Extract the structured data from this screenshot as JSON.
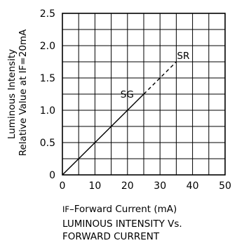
{
  "chart_data": {
    "type": "line",
    "xlabel_prefix": "IF",
    "xlabel_rest": "–Forward Current (mA)",
    "ylabel_lines": [
      "Luminous Intensity",
      "Relative Value at IF=20mA"
    ],
    "caption_lines": [
      "LUMINOUS INTENSITY Vs.",
      "FORWARD CURRENT"
    ],
    "xlim": [
      0,
      50
    ],
    "ylim": [
      0,
      2.5
    ],
    "x_ticks": [
      "0",
      "10",
      "20",
      "30",
      "40",
      "50"
    ],
    "y_ticks": [
      "0",
      "0.5",
      "1.0",
      "1.5",
      "2.0",
      "2.5"
    ],
    "grid": true,
    "series": [
      {
        "name": "SG",
        "style": "solid",
        "x": [
          0,
          20,
          35
        ],
        "y": [
          0,
          1.0,
          1.75
        ]
      },
      {
        "name": "SR",
        "style": "dashed",
        "x": [
          0,
          20,
          35
        ],
        "y": [
          0,
          1.0,
          1.75
        ]
      }
    ],
    "series_render": [
      {
        "name": "SG",
        "segments": [
          {
            "from": [
              0,
              0
            ],
            "to": [
              25,
              1.25
            ],
            "dash": false
          }
        ],
        "label_at": [
          20,
          1.25
        ]
      },
      {
        "name": "SR",
        "segments": [
          {
            "from": [
              25,
              1.25
            ],
            "to": [
              35,
              1.75
            ],
            "dash": true
          }
        ],
        "label_at": [
          35,
          1.75
        ]
      }
    ],
    "colors": {
      "line": "#000000",
      "grid": "#000000",
      "background": "#ffffff"
    }
  }
}
